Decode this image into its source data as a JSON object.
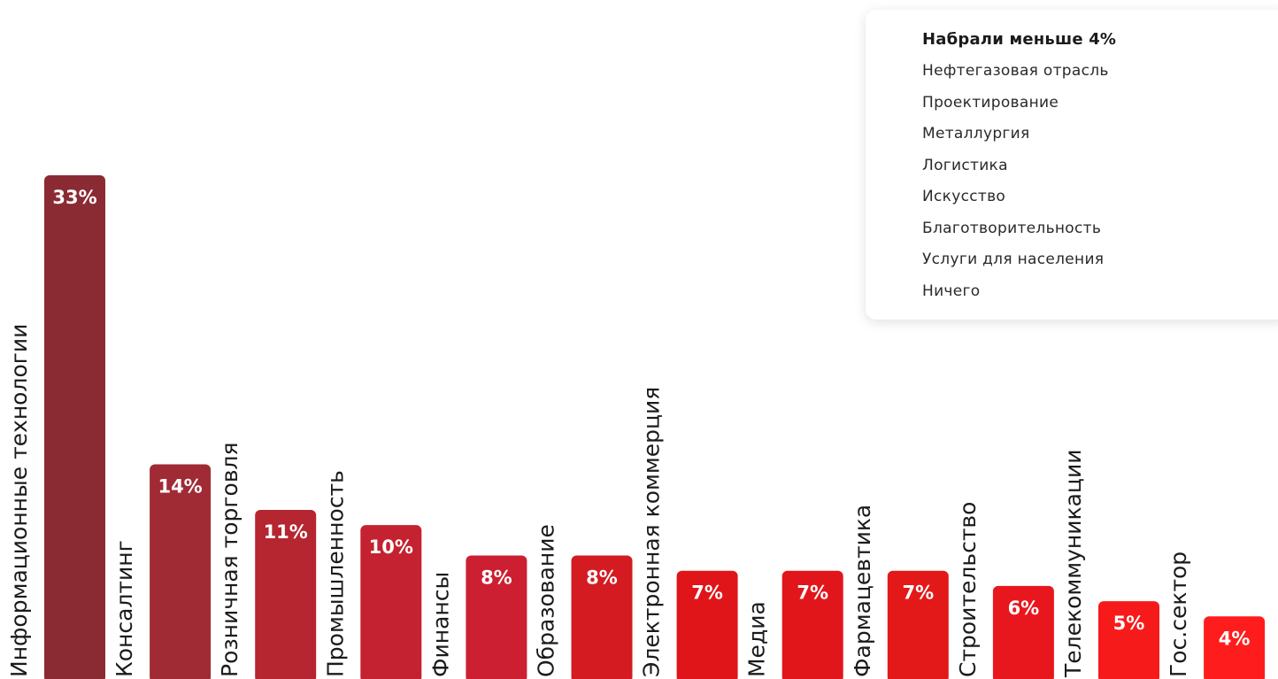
{
  "chart_data": {
    "type": "bar",
    "title": "",
    "xlabel": "",
    "ylabel": "",
    "ylim": [
      0,
      33
    ],
    "grid": false,
    "value_suffix": "%",
    "categories": [
      "Информационные технологии",
      "Консалтинг",
      "Розничная торговля",
      "Промышленность",
      "Финансы",
      "Образование",
      "Электронная коммерция",
      "Медиа",
      "Фармацевтика",
      "Строительство",
      "Телекоммуникации",
      "Гос.сектор"
    ],
    "values": [
      33,
      14,
      11,
      10,
      8,
      8,
      7,
      7,
      7,
      6,
      5,
      4
    ],
    "value_labels": [
      "33%",
      "14%",
      "11%",
      "10%",
      "8%",
      "8%",
      "7%",
      "7%",
      "7%",
      "6%",
      "5%",
      "4%"
    ],
    "bar_colors": [
      "#8a2a33",
      "#a02b35",
      "#b52631",
      "#c42230",
      "#cd1f32",
      "#d41b22",
      "#df1519",
      "#e1161b",
      "#e31818",
      "#e8171e",
      "#f71a1a",
      "#ff1c1c"
    ]
  },
  "legend": {
    "title": "Набрали меньше 4%",
    "items": [
      "Нефтегазовая отрасль",
      "Проектирование",
      "Металлургия",
      "Логистика",
      "Искусство",
      "Благотворительность",
      "Услуги для населения",
      "Ничего"
    ]
  },
  "colors": {
    "label_text": "#1b1b1b",
    "value_text": "#ffffff",
    "legend_background": "#ffffff"
  }
}
